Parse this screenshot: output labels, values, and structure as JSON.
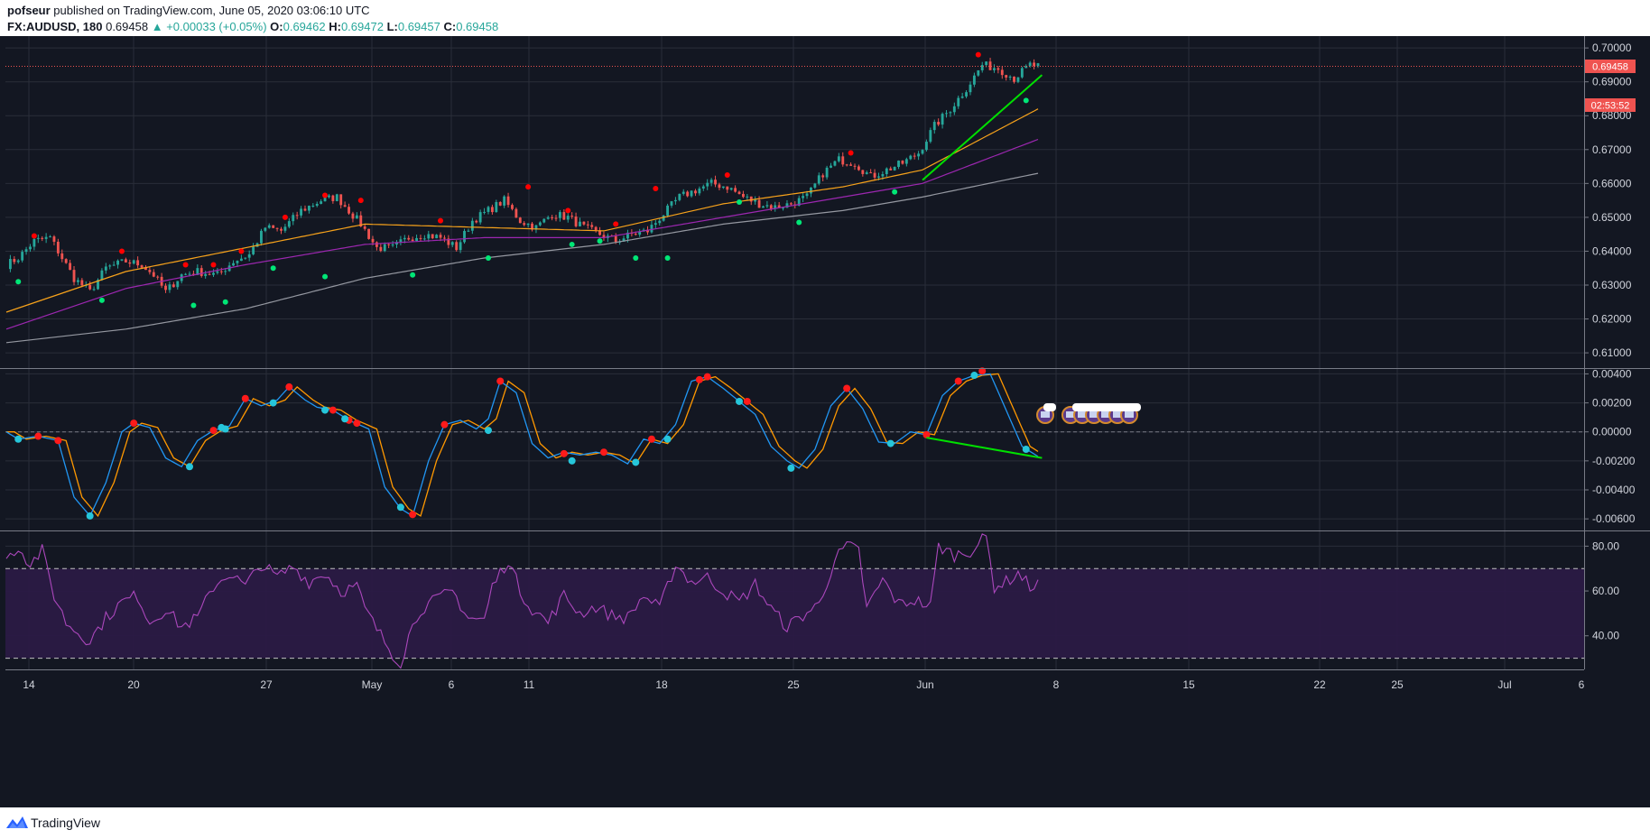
{
  "header": {
    "author": "pofseur",
    "published_text": "published on TradingView.com, June 05, 2020 03:06:10 UTC",
    "symbol": "FX:AUDUSD, 180",
    "last": "0.69458",
    "change_arrow": "▲",
    "change": "+0.00033 (+0.05%)",
    "o_label": "O:",
    "o": "0.69462",
    "h_label": "H:",
    "h": "0.69472",
    "l_label": "L:",
    "l": "0.69457",
    "c_label": "C:",
    "c": "0.69458"
  },
  "footer": {
    "brand": "TradingView"
  },
  "colors": {
    "background": "#131722",
    "grid": "#2a2e39",
    "up": "#26a69a",
    "down": "#ef5350",
    "ema_fast": "#f7a21b",
    "ema_mid": "#9c27b0",
    "ema_slow": "#9598a1",
    "fractal_high": "#ff0000",
    "fractal_low": "#00e676",
    "macd_fast": "#2196f3",
    "macd_slow": "#ff9800",
    "rsi": "#ab47bc",
    "trend": "#00e000"
  },
  "chart_data": {
    "type": "candlestick",
    "symbol": "FX:AUDUSD",
    "interval": "180",
    "x_ticks": [
      "14",
      "20",
      "27",
      "May",
      "6",
      "11",
      "18",
      "25",
      "Jun",
      "8",
      "15",
      "22",
      "25",
      "Jul",
      "6"
    ],
    "price_axis": {
      "ticks": [
        "0.70000",
        "0.69000",
        "0.68000",
        "0.67000",
        "0.66000",
        "0.65000",
        "0.64000",
        "0.63000",
        "0.62000",
        "0.61000"
      ],
      "range": [
        0.6055,
        0.7035
      ]
    },
    "last_price_label": "0.69458",
    "countdown_label": "02:53:52",
    "price_anchors": [
      [
        0,
        0.636
      ],
      [
        3,
        0.638
      ],
      [
        7,
        0.643
      ],
      [
        11,
        0.644
      ],
      [
        14,
        0.638
      ],
      [
        17,
        0.632
      ],
      [
        21,
        0.628
      ],
      [
        25,
        0.635
      ],
      [
        30,
        0.637
      ],
      [
        34,
        0.636
      ],
      [
        37,
        0.633
      ],
      [
        40,
        0.628
      ],
      [
        44,
        0.633
      ],
      [
        48,
        0.634
      ],
      [
        53,
        0.633
      ],
      [
        57,
        0.637
      ],
      [
        61,
        0.639
      ],
      [
        65,
        0.647
      ],
      [
        69,
        0.646
      ],
      [
        74,
        0.652
      ],
      [
        79,
        0.655
      ],
      [
        83,
        0.656
      ],
      [
        86,
        0.652
      ],
      [
        89,
        0.648
      ],
      [
        93,
        0.641
      ],
      [
        97,
        0.641
      ],
      [
        101,
        0.644
      ],
      [
        105,
        0.645
      ],
      [
        109,
        0.644
      ],
      [
        113,
        0.641
      ],
      [
        117,
        0.649
      ],
      [
        121,
        0.652
      ],
      [
        125,
        0.655
      ],
      [
        129,
        0.649
      ],
      [
        133,
        0.647
      ],
      [
        137,
        0.651
      ],
      [
        141,
        0.65
      ],
      [
        145,
        0.647
      ],
      [
        149,
        0.645
      ],
      [
        153,
        0.643
      ],
      [
        157,
        0.645
      ],
      [
        161,
        0.646
      ],
      [
        165,
        0.651
      ],
      [
        169,
        0.656
      ],
      [
        173,
        0.658
      ],
      [
        177,
        0.66
      ],
      [
        181,
        0.659
      ],
      [
        185,
        0.656
      ],
      [
        189,
        0.654
      ],
      [
        193,
        0.653
      ],
      [
        197,
        0.654
      ],
      [
        201,
        0.656
      ],
      [
        205,
        0.663
      ],
      [
        209,
        0.667
      ],
      [
        213,
        0.666
      ],
      [
        217,
        0.662
      ],
      [
        221,
        0.664
      ],
      [
        225,
        0.666
      ],
      [
        229,
        0.669
      ],
      [
        233,
        0.677
      ],
      [
        237,
        0.682
      ],
      [
        241,
        0.688
      ],
      [
        245,
        0.695
      ],
      [
        249,
        0.694
      ],
      [
        253,
        0.691
      ],
      [
        257,
        0.695
      ],
      [
        259,
        0.6946
      ]
    ],
    "total_bars": 260,
    "ema_fast_anchors": [
      [
        0,
        0.622
      ],
      [
        30,
        0.634
      ],
      [
        60,
        0.641
      ],
      [
        90,
        0.648
      ],
      [
        120,
        0.647
      ],
      [
        150,
        0.646
      ],
      [
        180,
        0.654
      ],
      [
        210,
        0.659
      ],
      [
        230,
        0.664
      ],
      [
        259,
        0.682
      ]
    ],
    "ema_mid_anchors": [
      [
        0,
        0.617
      ],
      [
        30,
        0.629
      ],
      [
        60,
        0.636
      ],
      [
        90,
        0.642
      ],
      [
        120,
        0.644
      ],
      [
        150,
        0.644
      ],
      [
        180,
        0.65
      ],
      [
        210,
        0.656
      ],
      [
        230,
        0.66
      ],
      [
        259,
        0.673
      ]
    ],
    "ema_slow_anchors": [
      [
        0,
        0.613
      ],
      [
        30,
        0.617
      ],
      [
        60,
        0.623
      ],
      [
        90,
        0.632
      ],
      [
        120,
        0.638
      ],
      [
        150,
        0.642
      ],
      [
        180,
        0.648
      ],
      [
        210,
        0.652
      ],
      [
        230,
        0.656
      ],
      [
        259,
        0.663
      ]
    ],
    "fractal_highs": [
      [
        7,
        0.6445
      ],
      [
        29,
        0.64
      ],
      [
        45,
        0.636
      ],
      [
        52,
        0.636
      ],
      [
        59,
        0.64
      ],
      [
        70,
        0.65
      ],
      [
        80,
        0.6565
      ],
      [
        89,
        0.655
      ],
      [
        109,
        0.649
      ],
      [
        131,
        0.659
      ],
      [
        141,
        0.652
      ],
      [
        153,
        0.648
      ],
      [
        163,
        0.6585
      ],
      [
        181,
        0.6625
      ],
      [
        212,
        0.669
      ],
      [
        244,
        0.698
      ]
    ],
    "fractal_lows": [
      [
        3,
        0.631
      ],
      [
        24,
        0.6255
      ],
      [
        47,
        0.624
      ],
      [
        55,
        0.625
      ],
      [
        67,
        0.635
      ],
      [
        80,
        0.6325
      ],
      [
        102,
        0.633
      ],
      [
        121,
        0.638
      ],
      [
        142,
        0.642
      ],
      [
        149,
        0.643
      ],
      [
        158,
        0.638
      ],
      [
        166,
        0.638
      ],
      [
        184,
        0.6545
      ],
      [
        199,
        0.6485
      ],
      [
        223,
        0.6575
      ],
      [
        256,
        0.6845
      ]
    ],
    "price_trendline": [
      [
        230,
        0.661
      ],
      [
        260,
        0.692
      ]
    ],
    "macd": {
      "ticks": [
        "0.00400",
        "0.00200",
        "0.00000",
        "-0.00200",
        "-0.00400",
        "-0.00600"
      ],
      "range": [
        -0.0068,
        0.0044
      ],
      "anchors": [
        [
          0,
          0.0
        ],
        [
          3,
          -0.0005
        ],
        [
          8,
          -0.0003
        ],
        [
          13,
          -0.0006
        ],
        [
          17,
          -0.0045
        ],
        [
          21,
          -0.0058
        ],
        [
          25,
          -0.0035
        ],
        [
          29,
          0.0
        ],
        [
          32,
          0.0006
        ],
        [
          36,
          0.0003
        ],
        [
          40,
          -0.0018
        ],
        [
          44,
          -0.0024
        ],
        [
          48,
          -0.0006
        ],
        [
          52,
          0.0001
        ],
        [
          56,
          0.0004
        ],
        [
          60,
          0.0023
        ],
        [
          64,
          0.0018
        ],
        [
          68,
          0.0022
        ],
        [
          71,
          0.0031
        ],
        [
          75,
          0.0022
        ],
        [
          78,
          0.0017
        ],
        [
          82,
          0.0015
        ],
        [
          86,
          0.0008
        ],
        [
          91,
          0.0002
        ],
        [
          95,
          -0.0038
        ],
        [
          99,
          -0.0053
        ],
        [
          102,
          -0.0058
        ],
        [
          106,
          -0.002
        ],
        [
          110,
          0.0005
        ],
        [
          114,
          0.0008
        ],
        [
          118,
          0.0002
        ],
        [
          121,
          0.0009
        ],
        [
          124,
          0.0035
        ],
        [
          128,
          0.0027
        ],
        [
          132,
          -0.0008
        ],
        [
          136,
          -0.0018
        ],
        [
          140,
          -0.0014
        ],
        [
          144,
          -0.0016
        ],
        [
          148,
          -0.0014
        ],
        [
          152,
          -0.0016
        ],
        [
          156,
          -0.0022
        ],
        [
          160,
          -0.0005
        ],
        [
          164,
          -0.0008
        ],
        [
          168,
          0.0005
        ],
        [
          172,
          0.0035
        ],
        [
          176,
          0.0038
        ],
        [
          180,
          0.003
        ],
        [
          184,
          0.0021
        ],
        [
          188,
          0.0012
        ],
        [
          192,
          -0.001
        ],
        [
          196,
          -0.002
        ],
        [
          199,
          -0.0025
        ],
        [
          203,
          -0.0012
        ],
        [
          207,
          0.0018
        ],
        [
          211,
          0.003
        ],
        [
          215,
          0.0016
        ],
        [
          219,
          -0.0007
        ],
        [
          223,
          -0.0008
        ],
        [
          227,
          0.0
        ],
        [
          231,
          -0.0002
        ],
        [
          235,
          0.0025
        ],
        [
          239,
          0.0035
        ],
        [
          243,
          0.0039
        ],
        [
          247,
          0.004
        ],
        [
          251,
          0.0015
        ],
        [
          255,
          -0.001
        ],
        [
          259,
          -0.0017
        ]
      ],
      "red_dots": [
        [
          8,
          -0.0003
        ],
        [
          13,
          -0.0006
        ],
        [
          32,
          0.0006
        ],
        [
          52,
          0.0001
        ],
        [
          60,
          0.0023
        ],
        [
          71,
          0.0031
        ],
        [
          82,
          0.0015
        ],
        [
          86,
          0.0008
        ],
        [
          88,
          0.0006
        ],
        [
          102,
          -0.0057
        ],
        [
          110,
          0.0005
        ],
        [
          124,
          0.0035
        ],
        [
          140,
          -0.0015
        ],
        [
          150,
          -0.0014
        ],
        [
          162,
          -0.0005
        ],
        [
          174,
          0.0036
        ],
        [
          176,
          0.0038
        ],
        [
          186,
          0.0021
        ],
        [
          211,
          0.003
        ],
        [
          231,
          -0.0002
        ],
        [
          239,
          0.0035
        ],
        [
          245,
          0.0042
        ]
      ],
      "blue_dots": [
        [
          3,
          -0.0005
        ],
        [
          21,
          -0.0058
        ],
        [
          46,
          -0.0024
        ],
        [
          54,
          0.0003
        ],
        [
          55,
          0.0002
        ],
        [
          67,
          0.002
        ],
        [
          80,
          0.0015
        ],
        [
          85,
          0.0009
        ],
        [
          99,
          -0.0052
        ],
        [
          121,
          0.0001
        ],
        [
          142,
          -0.002
        ],
        [
          158,
          -0.0021
        ],
        [
          166,
          -0.0005
        ],
        [
          184,
          0.0021
        ],
        [
          197,
          -0.0025
        ],
        [
          222,
          -0.0008
        ],
        [
          243,
          0.0039
        ],
        [
          256,
          -0.0012
        ]
      ],
      "trendline": [
        [
          231,
          -0.0004
        ],
        [
          260,
          -0.0018
        ]
      ]
    },
    "rsi": {
      "ticks": [
        "80.00",
        "60.00",
        "40.00"
      ],
      "range": [
        25,
        87
      ],
      "upper_band": 70,
      "lower_band": 30,
      "anchors": [
        [
          0,
          74
        ],
        [
          3,
          80
        ],
        [
          6,
          72
        ],
        [
          9,
          78
        ],
        [
          12,
          58
        ],
        [
          15,
          46
        ],
        [
          19,
          40
        ],
        [
          21,
          38
        ],
        [
          25,
          48
        ],
        [
          29,
          55
        ],
        [
          33,
          58
        ],
        [
          36,
          46
        ],
        [
          40,
          52
        ],
        [
          44,
          44
        ],
        [
          48,
          48
        ],
        [
          52,
          62
        ],
        [
          56,
          68
        ],
        [
          60,
          62
        ],
        [
          64,
          72
        ],
        [
          68,
          66
        ],
        [
          72,
          71
        ],
        [
          76,
          64
        ],
        [
          80,
          68
        ],
        [
          84,
          60
        ],
        [
          88,
          62
        ],
        [
          90,
          52
        ],
        [
          93,
          43
        ],
        [
          97,
          32
        ],
        [
          99,
          28
        ],
        [
          101,
          40
        ],
        [
          104,
          52
        ],
        [
          108,
          56
        ],
        [
          112,
          60
        ],
        [
          116,
          48
        ],
        [
          120,
          47
        ],
        [
          122,
          62
        ],
        [
          126,
          74
        ],
        [
          129,
          60
        ],
        [
          132,
          52
        ],
        [
          136,
          46
        ],
        [
          140,
          58
        ],
        [
          144,
          50
        ],
        [
          148,
          53
        ],
        [
          152,
          49
        ],
        [
          156,
          48
        ],
        [
          160,
          58
        ],
        [
          164,
          52
        ],
        [
          168,
          72
        ],
        [
          172,
          64
        ],
        [
          176,
          66
        ],
        [
          180,
          60
        ],
        [
          184,
          55
        ],
        [
          188,
          63
        ],
        [
          192,
          52
        ],
        [
          196,
          44
        ],
        [
          200,
          49
        ],
        [
          204,
          54
        ],
        [
          208,
          74
        ],
        [
          211,
          80
        ],
        [
          214,
          78
        ],
        [
          216,
          52
        ],
        [
          220,
          65
        ],
        [
          224,
          54
        ],
        [
          228,
          56
        ],
        [
          232,
          53
        ],
        [
          234,
          80
        ],
        [
          238,
          76
        ],
        [
          242,
          78
        ],
        [
          246,
          84
        ],
        [
          248,
          62
        ],
        [
          251,
          64
        ],
        [
          254,
          68
        ],
        [
          257,
          62
        ],
        [
          259,
          63
        ]
      ]
    }
  }
}
